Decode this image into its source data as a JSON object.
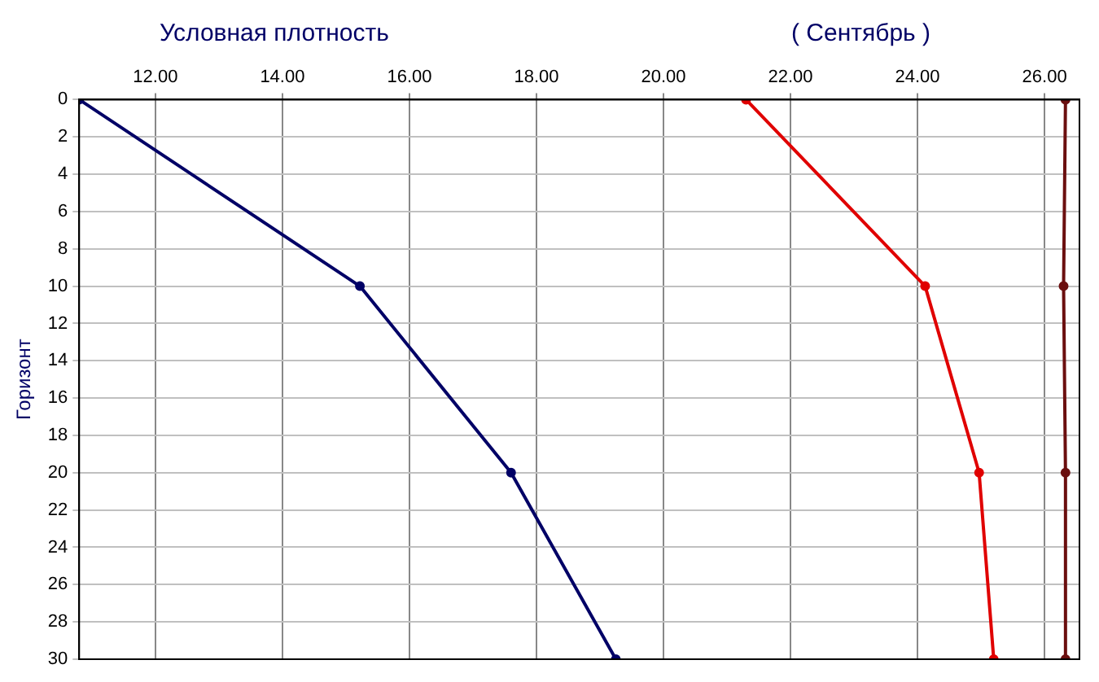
{
  "chart_data": {
    "type": "line",
    "title": "Условная плотность",
    "subtitle": "( Сентябрь )",
    "ylabel": "Горизонт",
    "xlim": [
      10.8,
      26.55
    ],
    "xticks": [
      {
        "value": 12,
        "label": "12.00"
      },
      {
        "value": 14,
        "label": "14.00"
      },
      {
        "value": 16,
        "label": "16.00"
      },
      {
        "value": 18,
        "label": "18.00"
      },
      {
        "value": 20,
        "label": "20.00"
      },
      {
        "value": 22,
        "label": "22.00"
      },
      {
        "value": 24,
        "label": "24.00"
      },
      {
        "value": 26,
        "label": "26.00"
      }
    ],
    "ylim": [
      30,
      0
    ],
    "yticks": [
      0,
      2,
      4,
      6,
      8,
      10,
      12,
      14,
      16,
      18,
      20,
      22,
      24,
      26,
      28,
      30
    ],
    "grid": true,
    "legend": false,
    "marker": "circle",
    "line_style": "solid",
    "series": [
      {
        "color": "#000066",
        "x": [
          10.8,
          15.22,
          17.6,
          19.25
        ],
        "values": [
          0,
          10,
          20,
          30
        ]
      },
      {
        "color": "#e00000",
        "x": [
          21.3,
          24.12,
          24.97,
          25.2
        ],
        "values": [
          0,
          10,
          20,
          30
        ]
      },
      {
        "color": "#6b0f0f",
        "x": [
          26.33,
          26.3,
          26.33,
          26.33
        ],
        "values": [
          0,
          10,
          20,
          30
        ]
      }
    ]
  }
}
